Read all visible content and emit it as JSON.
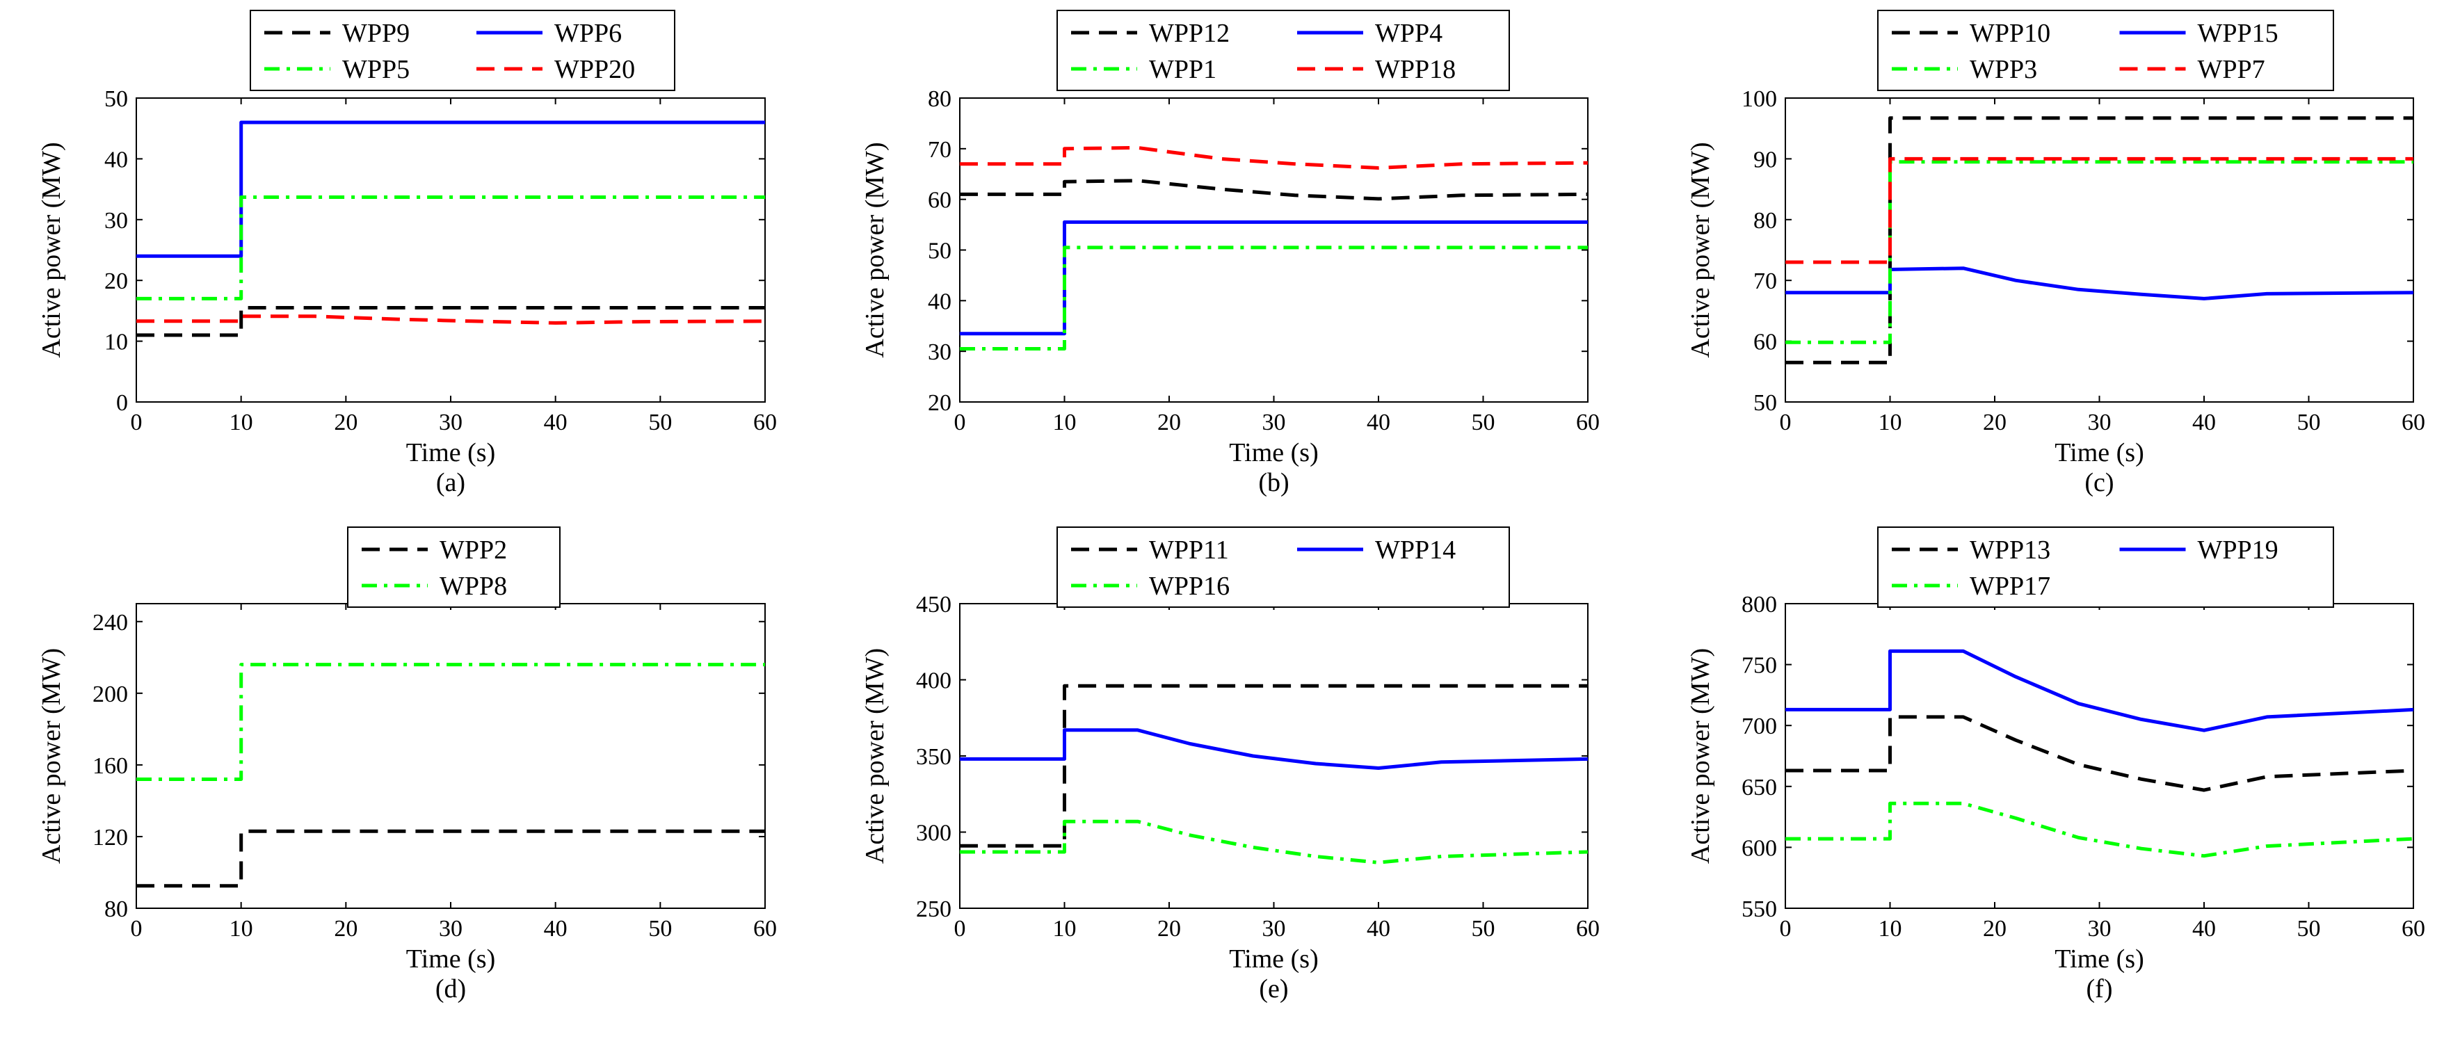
{
  "chart_data": [
    {
      "type": "line",
      "caption": "(a)",
      "xlabel": "Time (s)",
      "ylabel": "Active power (MW)",
      "xlim": [
        0,
        60
      ],
      "ylim": [
        0,
        50
      ],
      "xticks": [
        0,
        10,
        20,
        30,
        40,
        50,
        60
      ],
      "yticks": [
        0,
        10,
        20,
        30,
        40,
        50
      ],
      "grid": false,
      "legend_position": "top-outside",
      "legend_columns": 2,
      "series": [
        {
          "name": "WPP9",
          "style": "dash",
          "color": "#000000",
          "points": [
            [
              0,
              11
            ],
            [
              10,
              11
            ],
            [
              10,
              15.5
            ],
            [
              60,
              15.5
            ]
          ]
        },
        {
          "name": "WPP6",
          "style": "solid",
          "color": "#0000ff",
          "points": [
            [
              0,
              24
            ],
            [
              10,
              24
            ],
            [
              10,
              46
            ],
            [
              60,
              46
            ]
          ]
        },
        {
          "name": "WPP5",
          "style": "dashdot",
          "color": "#00ff00",
          "points": [
            [
              0,
              17
            ],
            [
              10,
              17
            ],
            [
              10,
              33.7
            ],
            [
              60,
              33.7
            ]
          ]
        },
        {
          "name": "WPP20",
          "style": "dash",
          "color": "#ff0000",
          "points": [
            [
              0,
              13.3
            ],
            [
              10,
              13.3
            ],
            [
              10,
              14.1
            ],
            [
              17,
              14.1
            ],
            [
              25,
              13.6
            ],
            [
              32,
              13.3
            ],
            [
              40,
              13.0
            ],
            [
              48,
              13.2
            ],
            [
              60,
              13.3
            ]
          ]
        }
      ]
    },
    {
      "type": "line",
      "caption": "(b)",
      "xlabel": "Time (s)",
      "ylabel": "Active power (MW)",
      "xlim": [
        0,
        60
      ],
      "ylim": [
        20,
        80
      ],
      "xticks": [
        0,
        10,
        20,
        30,
        40,
        50,
        60
      ],
      "yticks": [
        20,
        30,
        40,
        50,
        60,
        70,
        80
      ],
      "grid": false,
      "legend_position": "top-outside",
      "legend_columns": 2,
      "series": [
        {
          "name": "WPP12",
          "style": "dash",
          "color": "#000000",
          "points": [
            [
              0,
              61
            ],
            [
              10,
              61
            ],
            [
              10,
              63.5
            ],
            [
              17,
              63.7
            ],
            [
              25,
              62
            ],
            [
              32,
              60.8
            ],
            [
              40,
              60.1
            ],
            [
              48,
              60.8
            ],
            [
              60,
              61
            ]
          ]
        },
        {
          "name": "WPP4",
          "style": "solid",
          "color": "#0000ff",
          "points": [
            [
              0,
              33.5
            ],
            [
              10,
              33.5
            ],
            [
              10,
              55.5
            ],
            [
              60,
              55.5
            ]
          ]
        },
        {
          "name": "WPP1",
          "style": "dashdot",
          "color": "#00ff00",
          "points": [
            [
              0,
              30.5
            ],
            [
              10,
              30.5
            ],
            [
              10,
              50.5
            ],
            [
              60,
              50.5
            ]
          ]
        },
        {
          "name": "WPP18",
          "style": "dash",
          "color": "#ff0000",
          "points": [
            [
              0,
              67
            ],
            [
              10,
              67
            ],
            [
              10,
              70
            ],
            [
              17,
              70.2
            ],
            [
              25,
              68
            ],
            [
              32,
              67
            ],
            [
              40,
              66.2
            ],
            [
              48,
              67
            ],
            [
              60,
              67.2
            ]
          ]
        }
      ]
    },
    {
      "type": "line",
      "caption": "(c)",
      "xlabel": "Time (s)",
      "ylabel": "Active power (MW)",
      "xlim": [
        0,
        60
      ],
      "ylim": [
        50,
        100
      ],
      "xticks": [
        0,
        10,
        20,
        30,
        40,
        50,
        60
      ],
      "yticks": [
        50,
        60,
        70,
        80,
        90,
        100
      ],
      "grid": false,
      "legend_position": "top-outside",
      "legend_columns": 2,
      "series": [
        {
          "name": "WPP10",
          "style": "dash",
          "color": "#000000",
          "points": [
            [
              0,
              56.5
            ],
            [
              10,
              56.5
            ],
            [
              10,
              96.7
            ],
            [
              60,
              96.7
            ]
          ]
        },
        {
          "name": "WPP15",
          "style": "solid",
          "color": "#0000ff",
          "points": [
            [
              0,
              68
            ],
            [
              10,
              68
            ],
            [
              10,
              71.8
            ],
            [
              17,
              72
            ],
            [
              22,
              70
            ],
            [
              28,
              68.5
            ],
            [
              34,
              67.7
            ],
            [
              40,
              67
            ],
            [
              46,
              67.8
            ],
            [
              60,
              68
            ]
          ]
        },
        {
          "name": "WPP3",
          "style": "dashdot",
          "color": "#00ff00",
          "points": [
            [
              0,
              59.8
            ],
            [
              10,
              59.8
            ],
            [
              10,
              89.5
            ],
            [
              60,
              89.5
            ]
          ]
        },
        {
          "name": "WPP7",
          "style": "dash",
          "color": "#ff0000",
          "points": [
            [
              0,
              73
            ],
            [
              10,
              73
            ],
            [
              10,
              90
            ],
            [
              60,
              90
            ]
          ]
        }
      ]
    },
    {
      "type": "line",
      "caption": "(d)",
      "xlabel": "Time (s)",
      "ylabel": "Active power (MW)",
      "xlim": [
        0,
        60
      ],
      "ylim": [
        80,
        250
      ],
      "xticks": [
        0,
        10,
        20,
        30,
        40,
        50,
        60
      ],
      "yticks": [
        80,
        120,
        160,
        200,
        240
      ],
      "grid": false,
      "legend_position": "top-outside",
      "legend_columns": 1,
      "series": [
        {
          "name": "WPP2",
          "style": "dash",
          "color": "#000000",
          "points": [
            [
              0,
              92.5
            ],
            [
              10,
              92.5
            ],
            [
              10,
              123
            ],
            [
              60,
              123
            ]
          ]
        },
        {
          "name": "WPP8",
          "style": "dashdot",
          "color": "#00ff00",
          "points": [
            [
              0,
              152
            ],
            [
              10,
              152
            ],
            [
              10,
              216
            ],
            [
              60,
              216
            ]
          ]
        }
      ]
    },
    {
      "type": "line",
      "caption": "(e)",
      "xlabel": "Time (s)",
      "ylabel": "Active power (MW)",
      "xlim": [
        0,
        60
      ],
      "ylim": [
        250,
        450
      ],
      "xticks": [
        0,
        10,
        20,
        30,
        40,
        50,
        60
      ],
      "yticks": [
        250,
        300,
        350,
        400,
        450
      ],
      "grid": false,
      "legend_position": "top-outside",
      "legend_columns": 2,
      "series": [
        {
          "name": "WPP11",
          "style": "dash",
          "color": "#000000",
          "points": [
            [
              0,
              291
            ],
            [
              10,
              291
            ],
            [
              10,
              396
            ],
            [
              60,
              396
            ]
          ]
        },
        {
          "name": "WPP14",
          "style": "solid",
          "color": "#0000ff",
          "points": [
            [
              0,
              348
            ],
            [
              10,
              348
            ],
            [
              10,
              367
            ],
            [
              17,
              367
            ],
            [
              22,
              358
            ],
            [
              28,
              350
            ],
            [
              34,
              345
            ],
            [
              40,
              342
            ],
            [
              46,
              346
            ],
            [
              60,
              348
            ]
          ]
        },
        {
          "name": "WPP16",
          "style": "dashdot",
          "color": "#00ff00",
          "points": [
            [
              0,
              287
            ],
            [
              10,
              287
            ],
            [
              10,
              307
            ],
            [
              17,
              307
            ],
            [
              22,
              298
            ],
            [
              28,
              290
            ],
            [
              34,
              284
            ],
            [
              40,
              280
            ],
            [
              46,
              284
            ],
            [
              60,
              287
            ]
          ]
        }
      ]
    },
    {
      "type": "line",
      "caption": "(f)",
      "xlabel": "Time (s)",
      "ylabel": "Active power (MW)",
      "xlim": [
        0,
        60
      ],
      "ylim": [
        550,
        800
      ],
      "xticks": [
        0,
        10,
        20,
        30,
        40,
        50,
        60
      ],
      "yticks": [
        550,
        600,
        650,
        700,
        750,
        800
      ],
      "grid": false,
      "legend_position": "top-outside",
      "legend_columns": 2,
      "series": [
        {
          "name": "WPP13",
          "style": "dash",
          "color": "#000000",
          "points": [
            [
              0,
              663
            ],
            [
              10,
              663
            ],
            [
              10,
              707
            ],
            [
              17,
              707
            ],
            [
              22,
              688
            ],
            [
              28,
              668
            ],
            [
              34,
              656
            ],
            [
              40,
              647
            ],
            [
              46,
              658
            ],
            [
              60,
              663
            ]
          ]
        },
        {
          "name": "WPP19",
          "style": "solid",
          "color": "#0000ff",
          "points": [
            [
              0,
              713
            ],
            [
              10,
              713
            ],
            [
              10,
              761
            ],
            [
              17,
              761
            ],
            [
              22,
              740
            ],
            [
              28,
              718
            ],
            [
              34,
              705
            ],
            [
              40,
              696
            ],
            [
              46,
              707
            ],
            [
              60,
              713
            ]
          ]
        },
        {
          "name": "WPP17",
          "style": "dashdot",
          "color": "#00ff00",
          "points": [
            [
              0,
              607
            ],
            [
              10,
              607
            ],
            [
              10,
              636
            ],
            [
              17,
              636
            ],
            [
              22,
              624
            ],
            [
              28,
              608
            ],
            [
              34,
              599
            ],
            [
              40,
              593
            ],
            [
              46,
              601
            ],
            [
              60,
              607
            ]
          ]
        }
      ]
    }
  ]
}
